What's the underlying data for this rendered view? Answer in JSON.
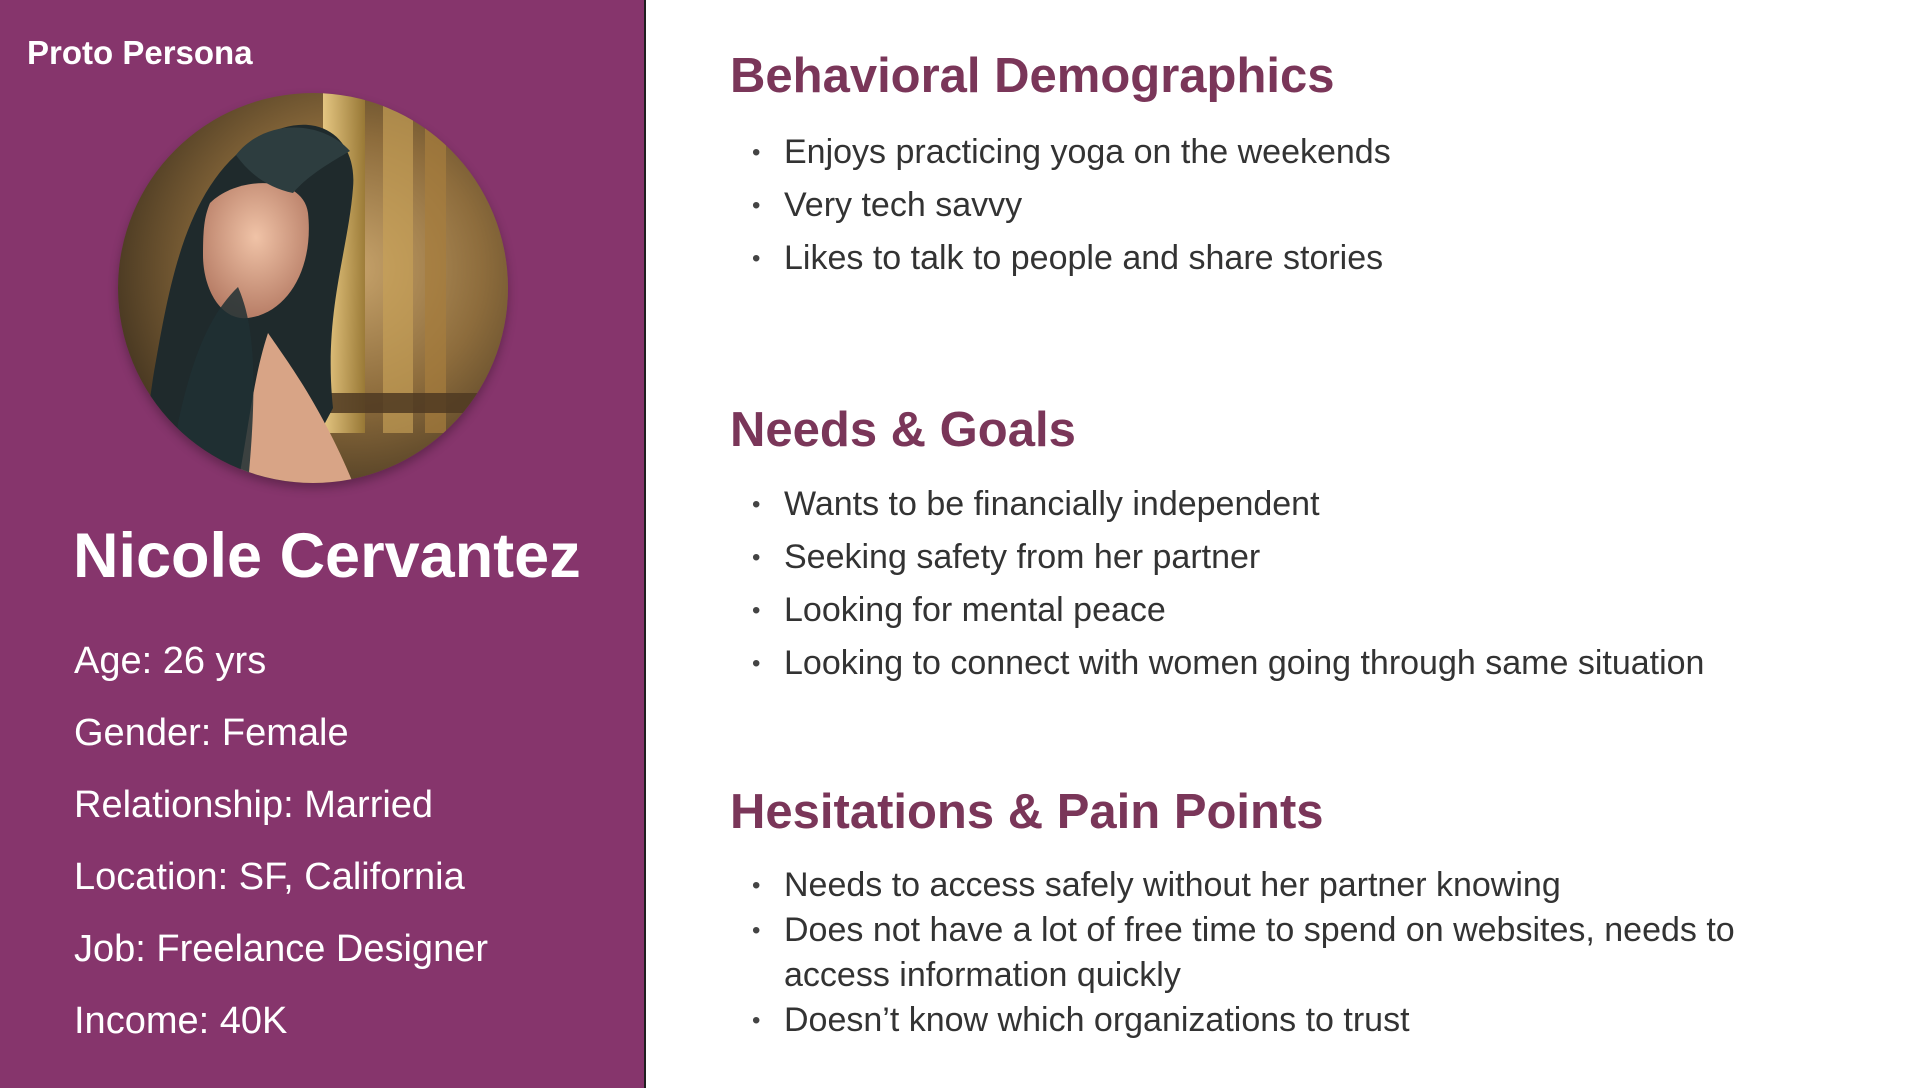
{
  "persona": {
    "badge": "Proto Persona",
    "name": "Nicole Cervantez",
    "details": [
      "Age: 26 yrs",
      "Gender: Female",
      "Relationship: Married",
      "Location: SF, California",
      "Job: Freelance Designer",
      "Income: 40K"
    ]
  },
  "sections": {
    "behavioral": {
      "title": "Behavioral Demographics",
      "items": [
        "Enjoys practicing yoga on the weekends",
        "Very tech savvy",
        "Likes to talk to people and share stories"
      ]
    },
    "needs": {
      "title": "Needs & Goals",
      "items": [
        "Wants to be financially independent",
        "Seeking safety from her partner",
        "Looking for mental peace",
        "Looking to connect with women going through same situation"
      ]
    },
    "pain": {
      "title": "Hesitations & Pain Points",
      "items": [
        "Needs to access safely without her partner knowing",
        "Does not have a lot of free time to spend on websites, needs to access information quickly",
        "Doesn’t know which organizations to trust"
      ]
    }
  },
  "colors": {
    "panel": "#86356c",
    "heading": "#7a3659",
    "body_text": "#333333"
  }
}
